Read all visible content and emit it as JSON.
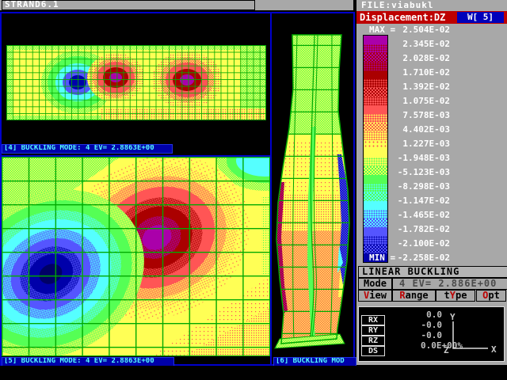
{
  "titlebar": {
    "app": "STRAND6.1",
    "file": "FILE:viabukl"
  },
  "banner": {
    "title": "Displacement:DZ",
    "window": "W[ 5]"
  },
  "legend": {
    "max_label": "MAX =",
    "min_label": "MIN =",
    "values": [
      "2.504E-02",
      "2.345E-02",
      "2.028E-02",
      "1.710E-02",
      "1.392E-02",
      "1.075E-02",
      "7.578E-03",
      "4.402E-03",
      "1.227E-03",
      "-1.948E-03",
      "-5.123E-03",
      "-8.298E-03",
      "-1.147E-02",
      "-1.465E-02",
      "-1.782E-02",
      "-2.100E-02",
      "-2.258E-02"
    ],
    "bands": [
      {
        "a": "#AA00AA",
        "mix": "solid"
      },
      {
        "a": "#AA00AA",
        "b": "#AA0000",
        "mix": "25"
      },
      {
        "a": "#AA00AA",
        "b": "#AA0000",
        "mix": "50"
      },
      {
        "a": "#AA0000",
        "b": "#AA00AA",
        "mix": "25"
      },
      {
        "a": "#AA0000",
        "mix": "solid"
      },
      {
        "a": "#AA0000",
        "b": "#FF5555",
        "mix": "25"
      },
      {
        "a": "#AA0000",
        "b": "#FF5555",
        "mix": "50"
      },
      {
        "a": "#FF5555",
        "b": "#AA0000",
        "mix": "25"
      },
      {
        "a": "#FF5555",
        "mix": "solid"
      },
      {
        "a": "#FF5555",
        "b": "#FFFF55",
        "mix": "25"
      },
      {
        "a": "#FF5555",
        "b": "#FFFF55",
        "mix": "50"
      },
      {
        "a": "#FFFF55",
        "b": "#FF5555",
        "mix": "25"
      },
      {
        "a": "#FFFF55",
        "b": "#FF5555",
        "mix": "12"
      },
      {
        "a": "#FFFF55",
        "mix": "solid"
      },
      {
        "a": "#FFFF55",
        "b": "#55FF55",
        "mix": "25"
      },
      {
        "a": "#FFFF55",
        "b": "#55FF55",
        "mix": "50"
      },
      {
        "a": "#55FF55",
        "mix": "solid"
      },
      {
        "a": "#55FF55",
        "b": "#55FFFF",
        "mix": "25"
      },
      {
        "a": "#55FF55",
        "b": "#55FFFF",
        "mix": "50"
      },
      {
        "a": "#55FFFF",
        "mix": "solid"
      },
      {
        "a": "#55FFFF",
        "b": "#5555FF",
        "mix": "25"
      },
      {
        "a": "#55FFFF",
        "b": "#5555FF",
        "mix": "50"
      },
      {
        "a": "#5555FF",
        "mix": "solid"
      },
      {
        "a": "#5555FF",
        "b": "#0000AA",
        "mix": "25"
      },
      {
        "a": "#5555FF",
        "b": "#0000AA",
        "mix": "50"
      },
      {
        "a": "#0000AA",
        "mix": "solid"
      }
    ]
  },
  "windows": [
    {
      "label": "[4] BUCKLING MODE: 4 EV= 2.8863E+00"
    },
    {
      "label": "[5] BUCKLING MODE: 4 EV= 2.8863E+00"
    },
    {
      "label": "[6] BUCKLING MOD"
    }
  ],
  "controls": {
    "section_title": "LINEAR BUCKLING",
    "mode_button": "Mode",
    "mode_value": "4 EV= 2.886E+00",
    "buttons": [
      {
        "pre": "",
        "hot": "V",
        "post": "iew"
      },
      {
        "pre": "",
        "hot": "R",
        "post": "ange"
      },
      {
        "pre": "t",
        "hot": "Y",
        "post": "pe"
      },
      {
        "pre": "",
        "hot": "O",
        "post": "pt"
      }
    ]
  },
  "status": {
    "rows": [
      {
        "label": "RX",
        "value": "0.0"
      },
      {
        "label": "RY",
        "value": "-0.0"
      },
      {
        "label": "RZ",
        "value": "-0.0"
      },
      {
        "label": "DS",
        "value": "0.0E+00%"
      }
    ],
    "axes": {
      "x": "X",
      "y": "Y",
      "z": "Z"
    }
  },
  "colors": {
    "panel": "#A8A8A8",
    "banner_red": "#BE0000",
    "frame_blue": "#0000CC",
    "label_bar_blue": "#0000AA",
    "label_text_cyan": "#55FFFF",
    "hotkey_red": "#BB0000",
    "window_box_blue": "#0000BB"
  }
}
